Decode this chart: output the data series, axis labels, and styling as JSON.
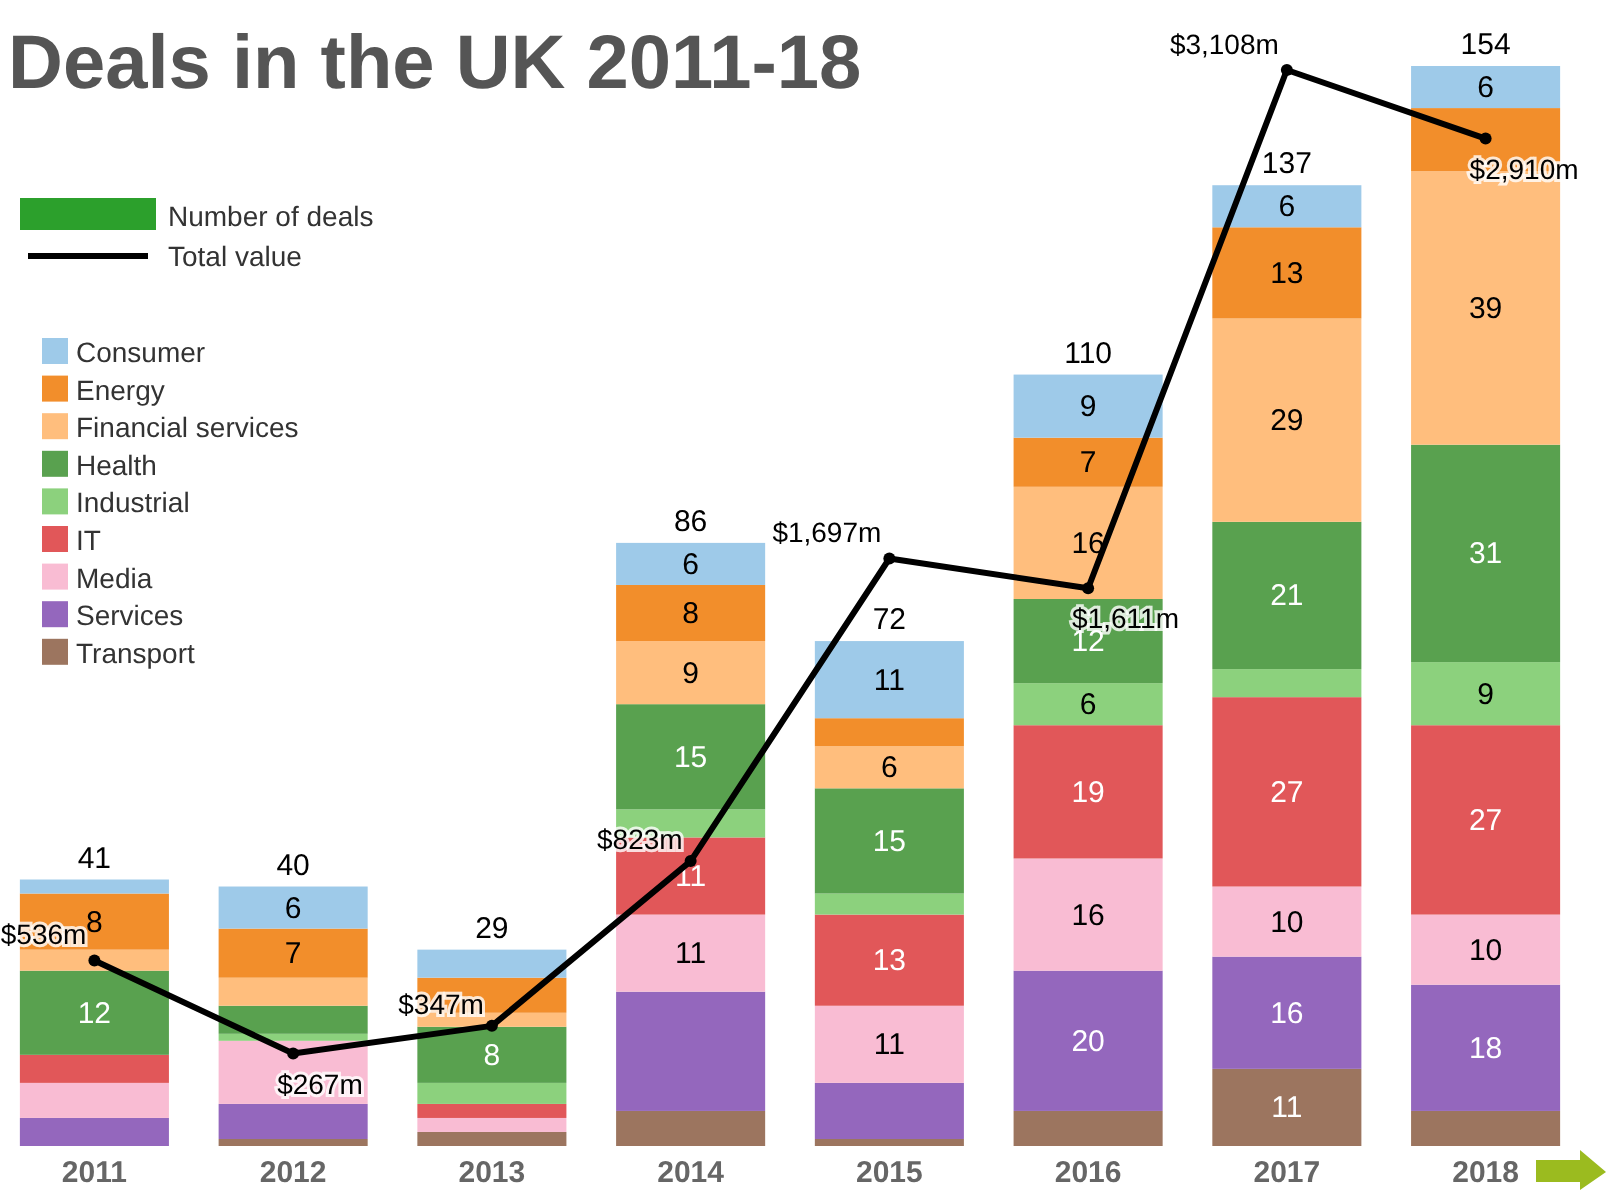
{
  "chart_data": {
    "type": "bar",
    "title": "Deals in the UK 2011-18",
    "ylabel": "Number of deals",
    "stacked": true,
    "legend": "top left",
    "categories": [
      "2011",
      "2012",
      "2013",
      "2014",
      "2015",
      "2016",
      "2017",
      "2018"
    ],
    "tick_labels": "x",
    "totals": [
      "41",
      "40",
      "29",
      "86",
      "72",
      "110",
      "137",
      "154"
    ],
    "series": [
      {
        "name": "Transport",
        "color": "#9c755f",
        "values": [
          0,
          1,
          2,
          5,
          1,
          5,
          11,
          5
        ],
        "value_labels": [
          null,
          null,
          null,
          null,
          null,
          null,
          "11",
          null
        ]
      },
      {
        "name": "Services",
        "color": "#9467bd",
        "values": [
          4,
          5,
          0,
          17,
          8,
          20,
          16,
          18
        ],
        "value_labels": [
          null,
          null,
          null,
          null,
          null,
          "20",
          "16",
          "18"
        ]
      },
      {
        "name": "Media",
        "color": "#f9bcd3",
        "values": [
          5,
          9,
          2,
          11,
          11,
          16,
          10,
          10
        ],
        "value_labels": [
          null,
          null,
          null,
          "11",
          "11",
          "16",
          "10",
          "10"
        ]
      },
      {
        "name": "IT",
        "color": "#e15759",
        "values": [
          4,
          0,
          2,
          11,
          13,
          19,
          27,
          27
        ],
        "value_labels": [
          null,
          null,
          null,
          "11",
          "13",
          "19",
          "27",
          "27"
        ]
      },
      {
        "name": "Industrial",
        "color": "#8cd17d",
        "values": [
          0,
          1,
          3,
          4,
          3,
          6,
          4,
          9
        ],
        "value_labels": [
          null,
          null,
          null,
          null,
          null,
          "6",
          null,
          "9"
        ]
      },
      {
        "name": "Health",
        "color": "#59a14f",
        "values": [
          12,
          4,
          8,
          15,
          15,
          12,
          21,
          31
        ],
        "value_labels": [
          "12",
          null,
          "8",
          "15",
          "15",
          "12",
          "21",
          "31"
        ]
      },
      {
        "name": "Financial services",
        "color": "#ffbe7d",
        "values": [
          3,
          4,
          2,
          9,
          6,
          16,
          29,
          39
        ],
        "value_labels": [
          null,
          null,
          null,
          "9",
          "6",
          "16",
          "29",
          "39"
        ]
      },
      {
        "name": "Energy",
        "color": "#f28e2b",
        "values": [
          8,
          7,
          5,
          8,
          4,
          7,
          13,
          9
        ],
        "value_labels": [
          "8",
          "7",
          null,
          "8",
          null,
          "7",
          "13",
          null
        ]
      },
      {
        "name": "Consumer",
        "color": "#9ecae9",
        "values": [
          2,
          6,
          4,
          6,
          11,
          9,
          6,
          6
        ],
        "value_labels": [
          null,
          "6",
          null,
          "6",
          "11",
          "9",
          "6",
          "6"
        ]
      },
      {
        "name": "Total value",
        "type": "line",
        "axis": "y2",
        "color": "#000000",
        "marker": "circle",
        "line_style": "solid",
        "values": [
          536,
          267,
          347,
          823,
          1697,
          1611,
          3108,
          2910
        ],
        "value_labels": [
          "$536m",
          "$267m",
          "$347m",
          "$823m",
          "$1,697m",
          "$1,611m",
          "$3,108m",
          "$2,910m"
        ]
      }
    ]
  }
}
